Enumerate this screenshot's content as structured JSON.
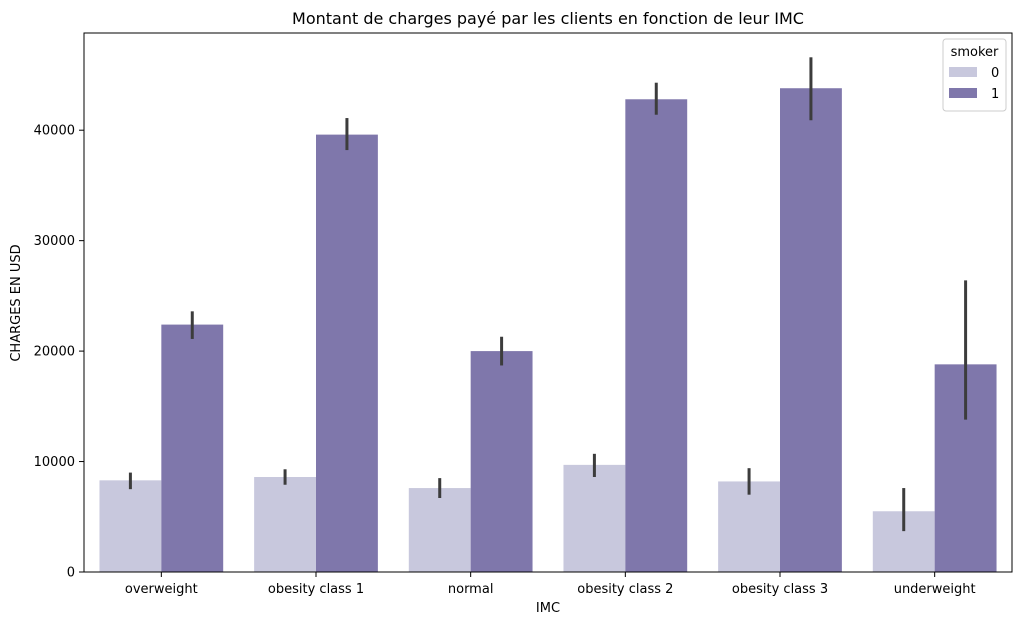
{
  "chart_data": {
    "type": "bar",
    "title": "Montant de charges payé par les clients en fonction de leur IMC",
    "xlabel": "IMC",
    "ylabel": "CHARGES EN USD",
    "categories": [
      "overweight",
      "obesity class 1",
      "normal",
      "obesity class 2",
      "obesity class 3",
      "underweight"
    ],
    "ylim": [
      0,
      48800
    ],
    "yticks": [
      0,
      10000,
      20000,
      30000,
      40000
    ],
    "grid": false,
    "legend": {
      "title": "smoker",
      "position": "top-right"
    },
    "series": [
      {
        "name": "0",
        "color": "#c8c8dd",
        "values": [
          8300,
          8600,
          7600,
          9700,
          8200,
          5500
        ],
        "ci_low": [
          7500,
          7900,
          6700,
          8600,
          7000,
          3700
        ],
        "ci_high": [
          9000,
          9300,
          8500,
          10700,
          9400,
          7600
        ]
      },
      {
        "name": "1",
        "color": "#7f77ab",
        "values": [
          22400,
          39600,
          20000,
          42800,
          43800,
          18800
        ],
        "ci_low": [
          21100,
          38200,
          18700,
          41400,
          40900,
          13800
        ],
        "ci_high": [
          23600,
          41100,
          21300,
          44300,
          46600,
          26400
        ]
      }
    ],
    "errorbar_color": "#3c3c3c"
  }
}
